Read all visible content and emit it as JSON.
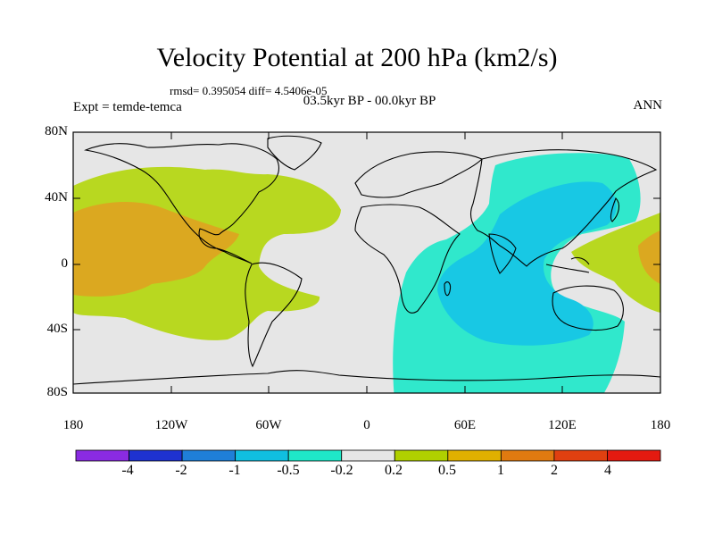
{
  "title": "Velocity Potential at 200 hPa (km2/s)",
  "stats_line": "rmsd= 0.395054 diff= 4.5406e-05",
  "experiment": "Expt = temde-temca",
  "period": "03.5kyr BP - 00.0kyr BP",
  "season": "ANN",
  "lat_labels": [
    "80N",
    "40N",
    "0",
    "40S",
    "80S"
  ],
  "lon_labels": [
    "180",
    "120W",
    "60W",
    "0",
    "60E",
    "120E",
    "180"
  ],
  "colorbar": {
    "labels": [
      "-4",
      "-2",
      "-1",
      "-0.5",
      "-0.2",
      "0.2",
      "0.5",
      "1",
      "2",
      "4"
    ],
    "colors": [
      "#8a2be2",
      "#1e32d0",
      "#1f7fd8",
      "#10bfe0",
      "#1fe8c8",
      "#e6e6e6",
      "#b0d000",
      "#e0b000",
      "#e07a10",
      "#e04010",
      "#e41a10"
    ]
  },
  "map_colors": {
    "background": "#e6e6e6",
    "weak_positive": "#b8d820",
    "moderate_positive": "#dba820",
    "weak_negative": "#30e8cc",
    "moderate_negative": "#18c8e4"
  }
}
